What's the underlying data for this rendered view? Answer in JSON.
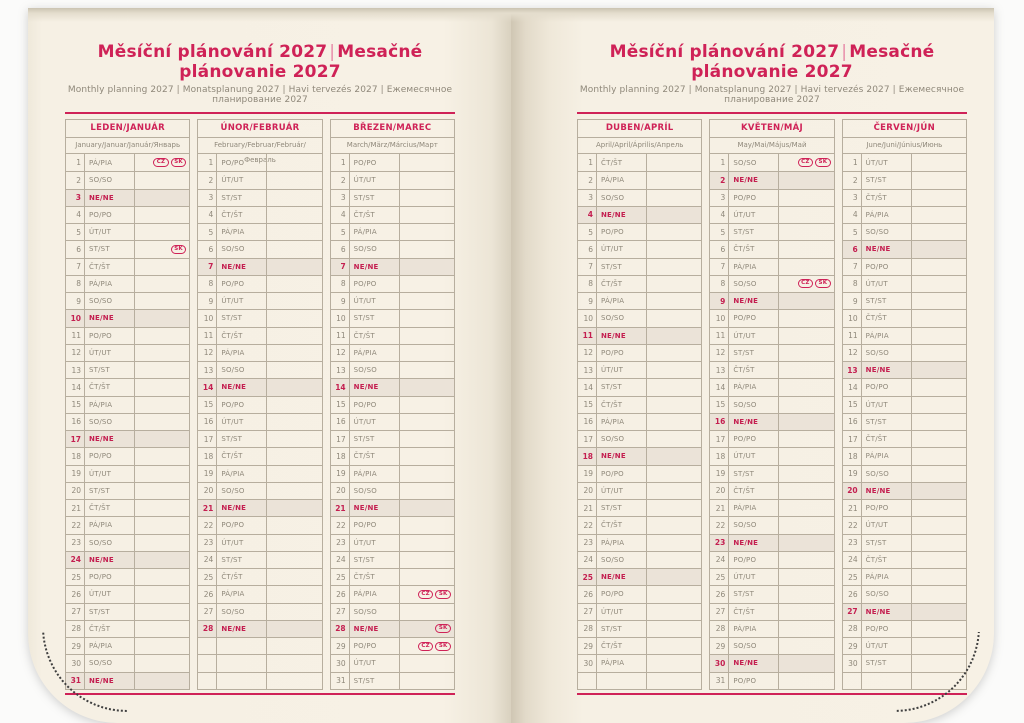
{
  "header": {
    "title_left": "Měsíční plánování 2027",
    "title_divider": "|",
    "title_right": "Mesačné plánovanie 2027",
    "subtitle": "Monthly planning 2027 | Monatsplanung 2027 | Havi tervezés 2027 | Ежемесячное планирование 2027"
  },
  "colors": {
    "accent": "#cf2257",
    "page_background": "#f6f0e4",
    "grid_line": "#b7ae9e",
    "day_text": "#8f887a",
    "sunday_row_background": "#ebe3d8",
    "stitch_dots": "#3f3f3f"
  },
  "country_badges": [
    "CZ",
    "SK"
  ],
  "rows_per_month_grid": 31,
  "months": [
    {
      "name": "LEDEN/JANUÁR",
      "subtitle": "January/Januar/Január/Январь",
      "days": [
        {
          "n": 1,
          "d": "PÁ/PIA",
          "h": [
            "CZ",
            "SK"
          ]
        },
        {
          "n": 2,
          "d": "SO/SO"
        },
        {
          "n": 3,
          "d": "NE/NE"
        },
        {
          "n": 4,
          "d": "PO/PO"
        },
        {
          "n": 5,
          "d": "ÚT/UT"
        },
        {
          "n": 6,
          "d": "ST/ST",
          "h": [
            "SK"
          ]
        },
        {
          "n": 7,
          "d": "ČT/ŠT"
        },
        {
          "n": 8,
          "d": "PÁ/PIA"
        },
        {
          "n": 9,
          "d": "SO/SO"
        },
        {
          "n": 10,
          "d": "NE/NE"
        },
        {
          "n": 11,
          "d": "PO/PO"
        },
        {
          "n": 12,
          "d": "ÚT/UT"
        },
        {
          "n": 13,
          "d": "ST/ST"
        },
        {
          "n": 14,
          "d": "ČT/ŠT"
        },
        {
          "n": 15,
          "d": "PÁ/PIA"
        },
        {
          "n": 16,
          "d": "SO/SO"
        },
        {
          "n": 17,
          "d": "NE/NE"
        },
        {
          "n": 18,
          "d": "PO/PO"
        },
        {
          "n": 19,
          "d": "ÚT/UT"
        },
        {
          "n": 20,
          "d": "ST/ST"
        },
        {
          "n": 21,
          "d": "ČT/ŠT"
        },
        {
          "n": 22,
          "d": "PÁ/PIA"
        },
        {
          "n": 23,
          "d": "SO/SO"
        },
        {
          "n": 24,
          "d": "NE/NE"
        },
        {
          "n": 25,
          "d": "PO/PO"
        },
        {
          "n": 26,
          "d": "ÚT/UT"
        },
        {
          "n": 27,
          "d": "ST/ST"
        },
        {
          "n": 28,
          "d": "ČT/ŠT"
        },
        {
          "n": 29,
          "d": "PÁ/PIA"
        },
        {
          "n": 30,
          "d": "SO/SO"
        },
        {
          "n": 31,
          "d": "NE/NE"
        }
      ]
    },
    {
      "name": "ÚNOR/FEBRUÁR",
      "subtitle": "February/Februar/Február/Февраль",
      "days": [
        {
          "n": 1,
          "d": "PO/PO"
        },
        {
          "n": 2,
          "d": "ÚT/UT"
        },
        {
          "n": 3,
          "d": "ST/ST"
        },
        {
          "n": 4,
          "d": "ČT/ŠT"
        },
        {
          "n": 5,
          "d": "PÁ/PIA"
        },
        {
          "n": 6,
          "d": "SO/SO"
        },
        {
          "n": 7,
          "d": "NE/NE"
        },
        {
          "n": 8,
          "d": "PO/PO"
        },
        {
          "n": 9,
          "d": "ÚT/UT"
        },
        {
          "n": 10,
          "d": "ST/ST"
        },
        {
          "n": 11,
          "d": "ČT/ŠT"
        },
        {
          "n": 12,
          "d": "PÁ/PIA"
        },
        {
          "n": 13,
          "d": "SO/SO"
        },
        {
          "n": 14,
          "d": "NE/NE"
        },
        {
          "n": 15,
          "d": "PO/PO"
        },
        {
          "n": 16,
          "d": "ÚT/UT"
        },
        {
          "n": 17,
          "d": "ST/ST"
        },
        {
          "n": 18,
          "d": "ČT/ŠT"
        },
        {
          "n": 19,
          "d": "PÁ/PIA"
        },
        {
          "n": 20,
          "d": "SO/SO"
        },
        {
          "n": 21,
          "d": "NE/NE"
        },
        {
          "n": 22,
          "d": "PO/PO"
        },
        {
          "n": 23,
          "d": "ÚT/UT"
        },
        {
          "n": 24,
          "d": "ST/ST"
        },
        {
          "n": 25,
          "d": "ČT/ŠT"
        },
        {
          "n": 26,
          "d": "PÁ/PIA"
        },
        {
          "n": 27,
          "d": "SO/SO"
        },
        {
          "n": 28,
          "d": "NE/NE"
        }
      ]
    },
    {
      "name": "BŘEZEN/MAREC",
      "subtitle": "March/März/Március/Март",
      "days": [
        {
          "n": 1,
          "d": "PO/PO"
        },
        {
          "n": 2,
          "d": "ÚT/UT"
        },
        {
          "n": 3,
          "d": "ST/ST"
        },
        {
          "n": 4,
          "d": "ČT/ŠT"
        },
        {
          "n": 5,
          "d": "PÁ/PIA"
        },
        {
          "n": 6,
          "d": "SO/SO"
        },
        {
          "n": 7,
          "d": "NE/NE"
        },
        {
          "n": 8,
          "d": "PO/PO"
        },
        {
          "n": 9,
          "d": "ÚT/UT"
        },
        {
          "n": 10,
          "d": "ST/ST"
        },
        {
          "n": 11,
          "d": "ČT/ŠT"
        },
        {
          "n": 12,
          "d": "PÁ/PIA"
        },
        {
          "n": 13,
          "d": "SO/SO"
        },
        {
          "n": 14,
          "d": "NE/NE"
        },
        {
          "n": 15,
          "d": "PO/PO"
        },
        {
          "n": 16,
          "d": "ÚT/UT"
        },
        {
          "n": 17,
          "d": "ST/ST"
        },
        {
          "n": 18,
          "d": "ČT/ŠT"
        },
        {
          "n": 19,
          "d": "PÁ/PIA"
        },
        {
          "n": 20,
          "d": "SO/SO"
        },
        {
          "n": 21,
          "d": "NE/NE"
        },
        {
          "n": 22,
          "d": "PO/PO"
        },
        {
          "n": 23,
          "d": "ÚT/UT"
        },
        {
          "n": 24,
          "d": "ST/ST"
        },
        {
          "n": 25,
          "d": "ČT/ŠT"
        },
        {
          "n": 26,
          "d": "PÁ/PIA",
          "h": [
            "CZ",
            "SK"
          ]
        },
        {
          "n": 27,
          "d": "SO/SO"
        },
        {
          "n": 28,
          "d": "NE/NE",
          "h": [
            "SK"
          ]
        },
        {
          "n": 29,
          "d": "PO/PO",
          "h": [
            "CZ",
            "SK"
          ]
        },
        {
          "n": 30,
          "d": "ÚT/UT"
        },
        {
          "n": 31,
          "d": "ST/ST"
        }
      ]
    },
    {
      "name": "DUBEN/APRÍL",
      "subtitle": "April/April/Április/Апрель",
      "days": [
        {
          "n": 1,
          "d": "ČT/ŠT"
        },
        {
          "n": 2,
          "d": "PÁ/PIA"
        },
        {
          "n": 3,
          "d": "SO/SO"
        },
        {
          "n": 4,
          "d": "NE/NE"
        },
        {
          "n": 5,
          "d": "PO/PO"
        },
        {
          "n": 6,
          "d": "ÚT/UT"
        },
        {
          "n": 7,
          "d": "ST/ST"
        },
        {
          "n": 8,
          "d": "ČT/ŠT"
        },
        {
          "n": 9,
          "d": "PÁ/PIA"
        },
        {
          "n": 10,
          "d": "SO/SO"
        },
        {
          "n": 11,
          "d": "NE/NE"
        },
        {
          "n": 12,
          "d": "PO/PO"
        },
        {
          "n": 13,
          "d": "ÚT/UT"
        },
        {
          "n": 14,
          "d": "ST/ST"
        },
        {
          "n": 15,
          "d": "ČT/ŠT"
        },
        {
          "n": 16,
          "d": "PÁ/PIA"
        },
        {
          "n": 17,
          "d": "SO/SO"
        },
        {
          "n": 18,
          "d": "NE/NE"
        },
        {
          "n": 19,
          "d": "PO/PO"
        },
        {
          "n": 20,
          "d": "ÚT/UT"
        },
        {
          "n": 21,
          "d": "ST/ST"
        },
        {
          "n": 22,
          "d": "ČT/ŠT"
        },
        {
          "n": 23,
          "d": "PÁ/PIA"
        },
        {
          "n": 24,
          "d": "SO/SO"
        },
        {
          "n": 25,
          "d": "NE/NE"
        },
        {
          "n": 26,
          "d": "PO/PO"
        },
        {
          "n": 27,
          "d": "ÚT/UT"
        },
        {
          "n": 28,
          "d": "ST/ST"
        },
        {
          "n": 29,
          "d": "ČT/ŠT"
        },
        {
          "n": 30,
          "d": "PÁ/PIA"
        }
      ]
    },
    {
      "name": "KVĚTEN/MÁJ",
      "subtitle": "May/Mai/Május/Май",
      "days": [
        {
          "n": 1,
          "d": "SO/SO",
          "h": [
            "CZ",
            "SK"
          ]
        },
        {
          "n": 2,
          "d": "NE/NE"
        },
        {
          "n": 3,
          "d": "PO/PO"
        },
        {
          "n": 4,
          "d": "ÚT/UT"
        },
        {
          "n": 5,
          "d": "ST/ST"
        },
        {
          "n": 6,
          "d": "ČT/ŠT"
        },
        {
          "n": 7,
          "d": "PÁ/PIA"
        },
        {
          "n": 8,
          "d": "SO/SO",
          "h": [
            "CZ",
            "SK"
          ]
        },
        {
          "n": 9,
          "d": "NE/NE"
        },
        {
          "n": 10,
          "d": "PO/PO"
        },
        {
          "n": 11,
          "d": "ÚT/UT"
        },
        {
          "n": 12,
          "d": "ST/ST"
        },
        {
          "n": 13,
          "d": "ČT/ŠT"
        },
        {
          "n": 14,
          "d": "PÁ/PIA"
        },
        {
          "n": 15,
          "d": "SO/SO"
        },
        {
          "n": 16,
          "d": "NE/NE"
        },
        {
          "n": 17,
          "d": "PO/PO"
        },
        {
          "n": 18,
          "d": "ÚT/UT"
        },
        {
          "n": 19,
          "d": "ST/ST"
        },
        {
          "n": 20,
          "d": "ČT/ŠT"
        },
        {
          "n": 21,
          "d": "PÁ/PIA"
        },
        {
          "n": 22,
          "d": "SO/SO"
        },
        {
          "n": 23,
          "d": "NE/NE"
        },
        {
          "n": 24,
          "d": "PO/PO"
        },
        {
          "n": 25,
          "d": "ÚT/UT"
        },
        {
          "n": 26,
          "d": "ST/ST"
        },
        {
          "n": 27,
          "d": "ČT/ŠT"
        },
        {
          "n": 28,
          "d": "PÁ/PIA"
        },
        {
          "n": 29,
          "d": "SO/SO"
        },
        {
          "n": 30,
          "d": "NE/NE"
        },
        {
          "n": 31,
          "d": "PO/PO"
        }
      ]
    },
    {
      "name": "ČERVEN/JÚN",
      "subtitle": "June/Juni/Június/Июнь",
      "days": [
        {
          "n": 1,
          "d": "ÚT/UT"
        },
        {
          "n": 2,
          "d": "ST/ST"
        },
        {
          "n": 3,
          "d": "ČT/ŠT"
        },
        {
          "n": 4,
          "d": "PÁ/PIA"
        },
        {
          "n": 5,
          "d": "SO/SO"
        },
        {
          "n": 6,
          "d": "NE/NE"
        },
        {
          "n": 7,
          "d": "PO/PO"
        },
        {
          "n": 8,
          "d": "ÚT/UT"
        },
        {
          "n": 9,
          "d": "ST/ST"
        },
        {
          "n": 10,
          "d": "ČT/ŠT"
        },
        {
          "n": 11,
          "d": "PÁ/PIA"
        },
        {
          "n": 12,
          "d": "SO/SO"
        },
        {
          "n": 13,
          "d": "NE/NE"
        },
        {
          "n": 14,
          "d": "PO/PO"
        },
        {
          "n": 15,
          "d": "ÚT/UT"
        },
        {
          "n": 16,
          "d": "ST/ST"
        },
        {
          "n": 17,
          "d": "ČT/ŠT"
        },
        {
          "n": 18,
          "d": "PÁ/PIA"
        },
        {
          "n": 19,
          "d": "SO/SO"
        },
        {
          "n": 20,
          "d": "NE/NE"
        },
        {
          "n": 21,
          "d": "PO/PO"
        },
        {
          "n": 22,
          "d": "ÚT/UT"
        },
        {
          "n": 23,
          "d": "ST/ST"
        },
        {
          "n": 24,
          "d": "ČT/ŠT"
        },
        {
          "n": 25,
          "d": "PÁ/PIA"
        },
        {
          "n": 26,
          "d": "SO/SO"
        },
        {
          "n": 27,
          "d": "NE/NE"
        },
        {
          "n": 28,
          "d": "PO/PO"
        },
        {
          "n": 29,
          "d": "ÚT/UT"
        },
        {
          "n": 30,
          "d": "ST/ST"
        }
      ]
    }
  ]
}
